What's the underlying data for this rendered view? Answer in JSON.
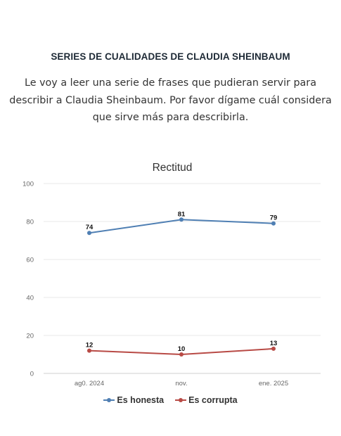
{
  "header": {
    "section_title": "SERIES DE CUALIDADES DE CLAUDIA SHEINBAUM",
    "intro": "Le voy a leer una serie de frases que pudieran servir para describir a Claudia Sheinbaum. Por favor dígame cuál considera que sirve más para describirla."
  },
  "chart_data": {
    "type": "line",
    "title": "Rectitud",
    "xlabel": "",
    "ylabel": "",
    "categories": [
      "ag0. 2024",
      "nov.",
      "ene. 2025"
    ],
    "ylim": [
      0,
      100
    ],
    "yticks": [
      0,
      20,
      40,
      60,
      80,
      100
    ],
    "grid": true,
    "legend": "bottom-center",
    "series": [
      {
        "name": "Es honesta",
        "values": [
          74,
          81,
          79
        ],
        "color": "#4f7fb3"
      },
      {
        "name": "Es corrupta",
        "values": [
          12,
          10,
          13
        ],
        "color": "#b84a45"
      }
    ]
  }
}
